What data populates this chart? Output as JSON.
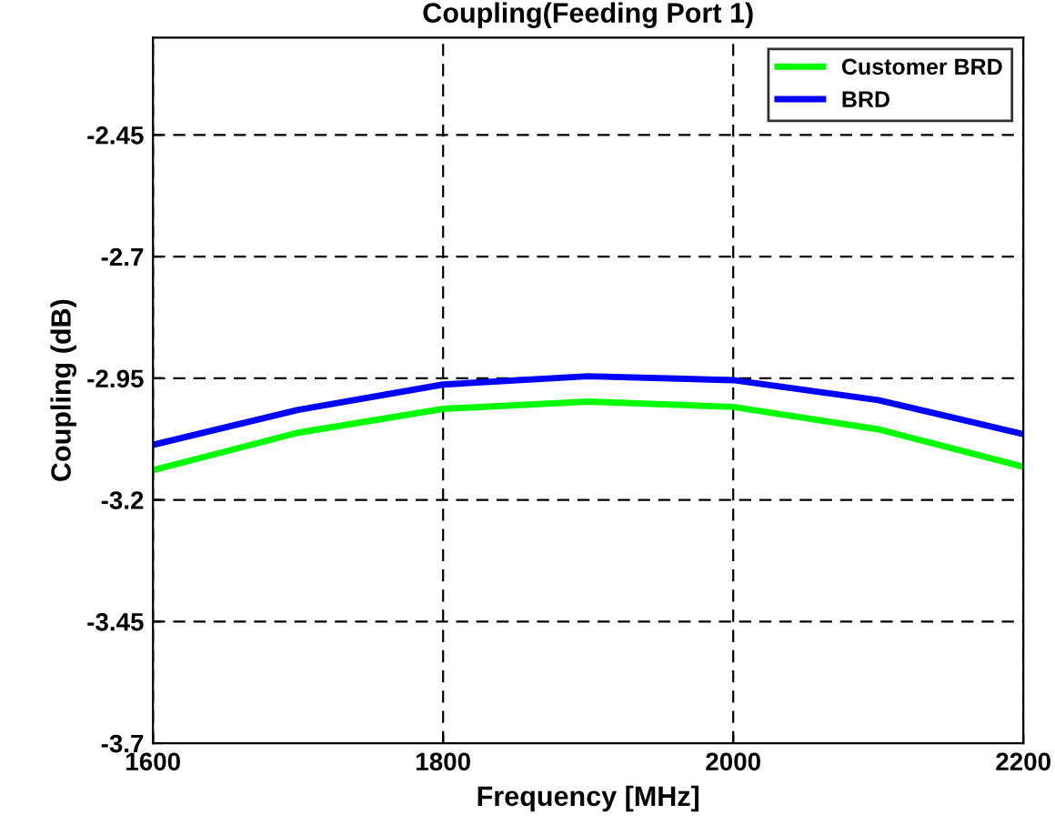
{
  "chart_data": {
    "type": "line",
    "title": "Coupling(Feeding Port 1)",
    "xlabel": "Frequency [MHz]",
    "ylabel": "Coupling (dB)",
    "xlim": [
      1600,
      2200
    ],
    "xticks": [
      1600,
      1800,
      2000,
      2200
    ],
    "ylim": [
      -3.7,
      -2.25
    ],
    "yticks": [
      -3.7,
      -3.45,
      -3.2,
      -2.95,
      -2.7,
      -2.45
    ],
    "grid": true,
    "legend": "top right",
    "line_style": "solid",
    "x": [
      1600,
      1700,
      1800,
      1900,
      2000,
      2100,
      2200
    ],
    "series": [
      {
        "name": "Customer BRD",
        "color": "#00ff00",
        "values": [
          -3.139,
          -3.062,
          -3.013,
          -2.998,
          -3.009,
          -3.055,
          -3.132
        ]
      },
      {
        "name": "BRD",
        "color": "#0000ff",
        "values": [
          -3.087,
          -3.015,
          -2.963,
          -2.946,
          -2.954,
          -2.995,
          -3.065
        ]
      }
    ]
  }
}
